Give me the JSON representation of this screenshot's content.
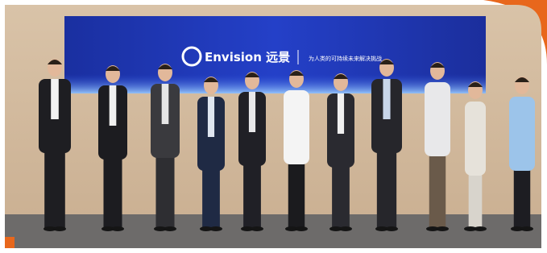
{
  "screen": {
    "brand": "Envision 远景",
    "slogan": "为人类的可持续未来解决挑战"
  }
}
